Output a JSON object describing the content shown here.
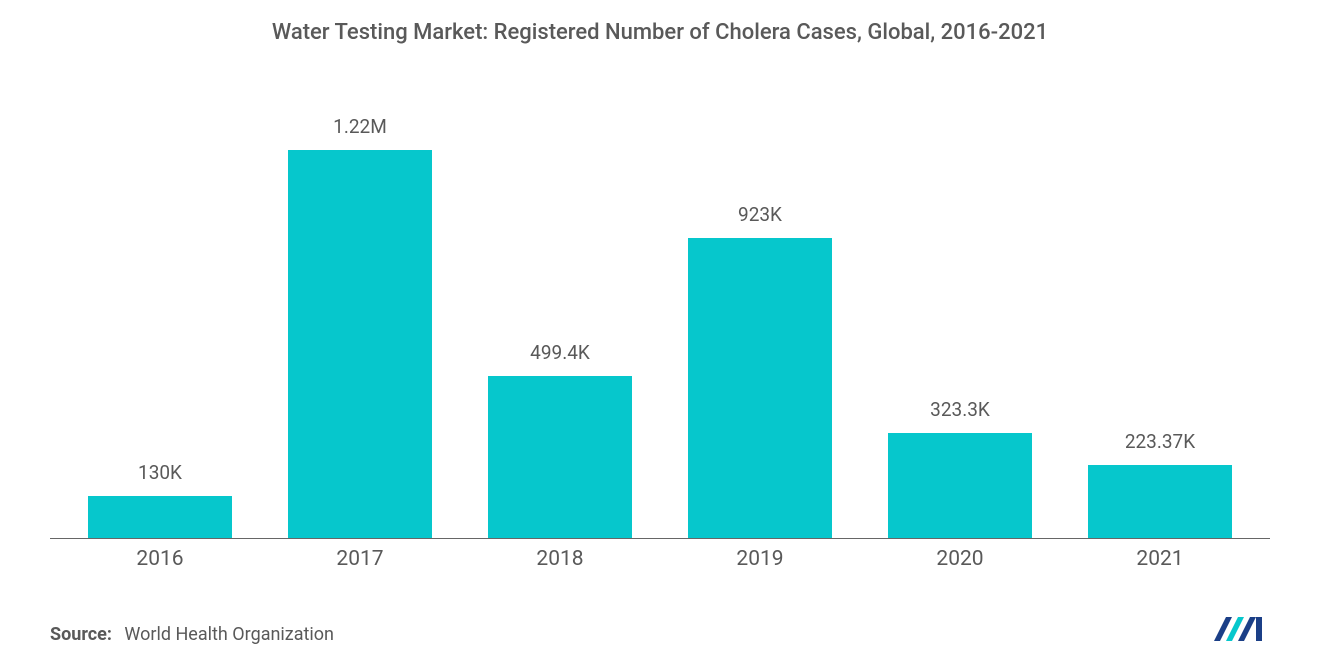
{
  "chart": {
    "type": "bar",
    "title": "Water Testing Market: Registered Number of Cholera Cases, Global, 2016-2021",
    "title_fontsize": 22,
    "title_color": "#595959",
    "categories": [
      "2016",
      "2017",
      "2018",
      "2019",
      "2020",
      "2021"
    ],
    "values": [
      130000,
      1220000,
      499400,
      923000,
      323300,
      223370
    ],
    "value_labels": [
      "130K",
      "1.22M",
      "499.4K",
      "923K",
      "323.3K",
      "223.37K"
    ],
    "bar_color": "#06c7cc",
    "bar_width_pct": 72,
    "axis_color": "#666666",
    "label_color": "#595959",
    "label_fontsize": 19,
    "xlabel_fontsize": 21,
    "ymax": 1300000,
    "background_color": "#ffffff"
  },
  "footer": {
    "source_label": "Source:",
    "source_text": "World Health Organization",
    "source_fontsize": 18,
    "source_color": "#595959"
  },
  "logo": {
    "primary_color": "#1b3f87",
    "accent_color": "#06c7cc"
  }
}
